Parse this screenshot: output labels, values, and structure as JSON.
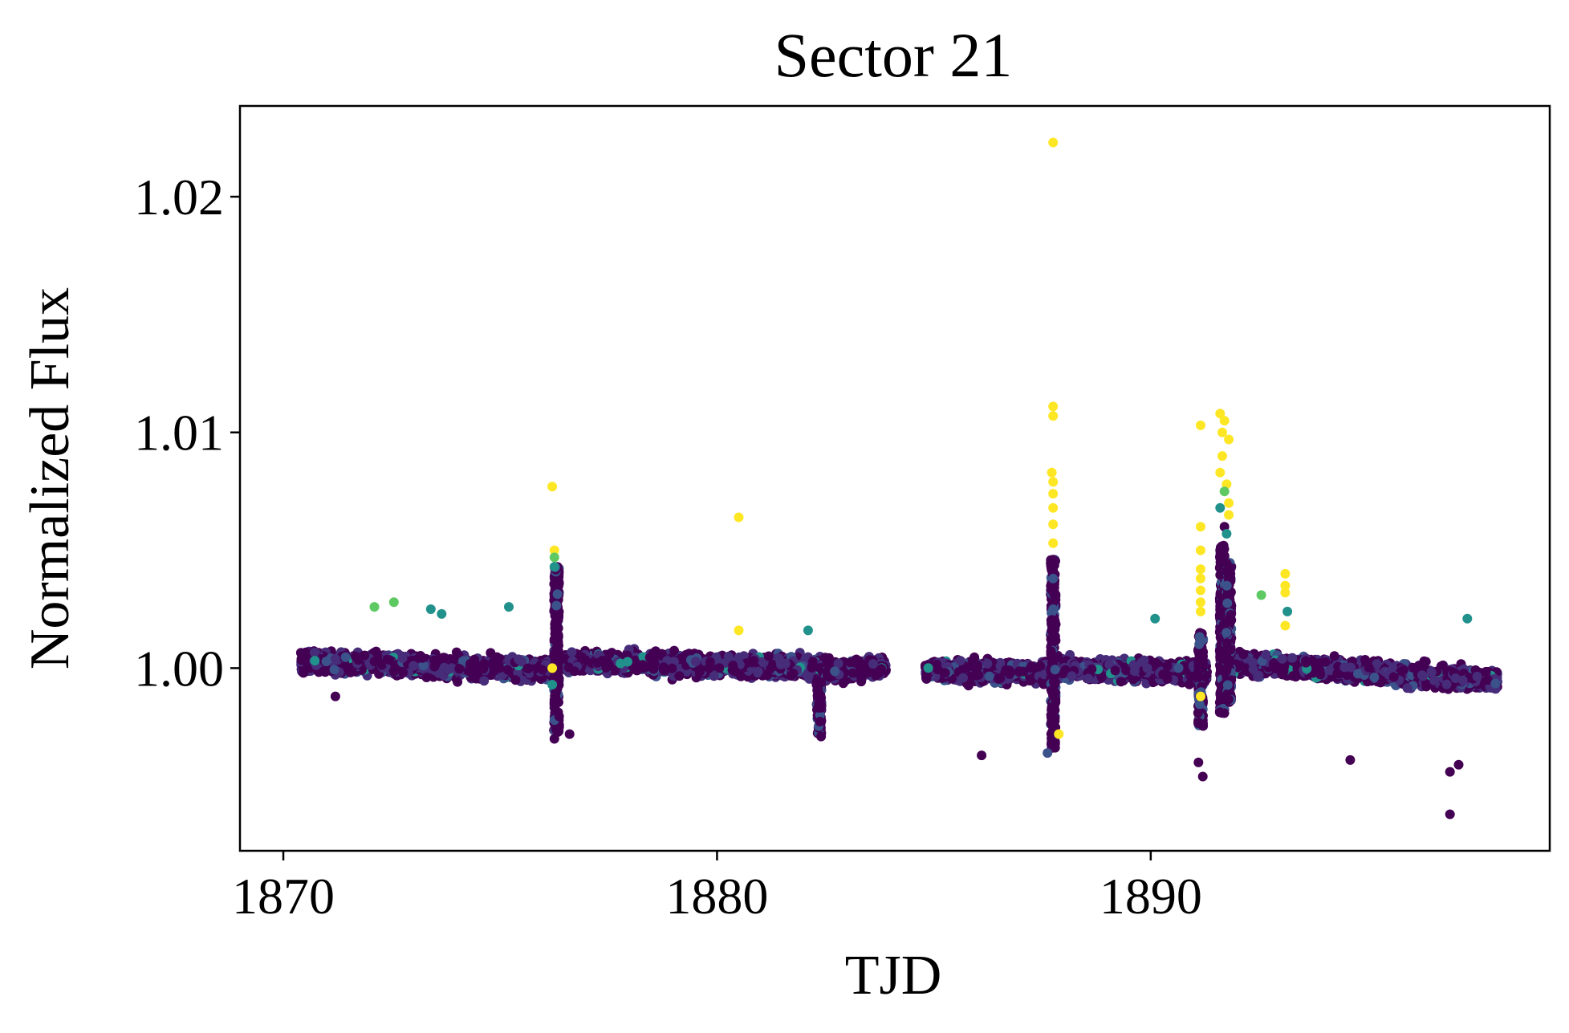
{
  "chart_data": {
    "type": "scatter",
    "title": "Sector 21",
    "xlabel": "TJD",
    "ylabel": "Normalized Flux",
    "xlim": [
      1869.0,
      1899.2
    ],
    "ylim": [
      0.99225,
      1.02385
    ],
    "xticks": [
      1870,
      1880,
      1890
    ],
    "xtick_labels": [
      "1870",
      "1880",
      "1890"
    ],
    "yticks": [
      1.0,
      1.01,
      1.02
    ],
    "ytick_labels": [
      "1.00",
      "1.01",
      "1.02"
    ],
    "grid": false,
    "legend": "none",
    "colormap": [
      "#440154",
      "#3b528b",
      "#21918c",
      "#5ec962",
      "#fde725"
    ],
    "data_gap": [
      1883.9,
      1884.8
    ],
    "baseline_segments": [
      {
        "x": [
          1870.4,
          1876.3
        ],
        "y": [
          1.0003,
          0.9999
        ]
      },
      {
        "x": [
          1876.5,
          1882.5
        ],
        "y": [
          1.0003,
          1.0
        ]
      },
      {
        "x": [
          1882.5,
          1883.9
        ],
        "y": [
          0.9998,
          1.0001
        ]
      },
      {
        "x": [
          1884.8,
          1887.6
        ],
        "y": [
          0.9999,
          0.9998
        ]
      },
      {
        "x": [
          1887.8,
          1891.3
        ],
        "y": [
          1.0,
          0.9998
        ]
      },
      {
        "x": [
          1891.9,
          1898.0
        ],
        "y": [
          1.0002,
          0.9995
        ]
      }
    ],
    "notable_points": [
      {
        "x": 1887.75,
        "y": 1.0223,
        "c": "#fde725"
      },
      {
        "x": 1887.75,
        "y": 1.0111,
        "c": "#fde725"
      },
      {
        "x": 1887.75,
        "y": 1.0107,
        "c": "#fde725"
      },
      {
        "x": 1887.72,
        "y": 1.0083,
        "c": "#fde725"
      },
      {
        "x": 1887.75,
        "y": 1.0079,
        "c": "#fde725"
      },
      {
        "x": 1887.75,
        "y": 1.0074,
        "c": "#fde725"
      },
      {
        "x": 1887.75,
        "y": 1.0068,
        "c": "#fde725"
      },
      {
        "x": 1887.75,
        "y": 1.0061,
        "c": "#fde725"
      },
      {
        "x": 1887.75,
        "y": 1.0053,
        "c": "#fde725"
      },
      {
        "x": 1887.75,
        "y": 1.0046,
        "c": "#440154"
      },
      {
        "x": 1887.75,
        "y": 1.0038,
        "c": "#3b528b"
      },
      {
        "x": 1887.75,
        "y": 1.0025,
        "c": "#3b528b"
      },
      {
        "x": 1887.88,
        "y": 0.9972,
        "c": "#fde725"
      },
      {
        "x": 1887.62,
        "y": 0.9964,
        "c": "#3b528b"
      },
      {
        "x": 1876.2,
        "y": 1.0077,
        "c": "#fde725"
      },
      {
        "x": 1876.25,
        "y": 1.005,
        "c": "#fde725"
      },
      {
        "x": 1876.25,
        "y": 1.0047,
        "c": "#5ec962"
      },
      {
        "x": 1876.25,
        "y": 1.0043,
        "c": "#21918c"
      },
      {
        "x": 1876.2,
        "y": 1.0,
        "c": "#fde725"
      },
      {
        "x": 1876.2,
        "y": 0.9993,
        "c": "#21918c"
      },
      {
        "x": 1876.25,
        "y": 0.997,
        "c": "#440154"
      },
      {
        "x": 1876.6,
        "y": 0.9972,
        "c": "#440154"
      },
      {
        "x": 1880.5,
        "y": 1.0064,
        "c": "#fde725"
      },
      {
        "x": 1880.5,
        "y": 1.0016,
        "c": "#fde725"
      },
      {
        "x": 1891.15,
        "y": 1.0103,
        "c": "#fde725"
      },
      {
        "x": 1891.6,
        "y": 1.0108,
        "c": "#fde725"
      },
      {
        "x": 1891.7,
        "y": 1.0105,
        "c": "#fde725"
      },
      {
        "x": 1891.65,
        "y": 1.01,
        "c": "#fde725"
      },
      {
        "x": 1891.8,
        "y": 1.0097,
        "c": "#fde725"
      },
      {
        "x": 1891.65,
        "y": 1.009,
        "c": "#fde725"
      },
      {
        "x": 1891.6,
        "y": 1.0083,
        "c": "#fde725"
      },
      {
        "x": 1891.75,
        "y": 1.0078,
        "c": "#fde725"
      },
      {
        "x": 1891.7,
        "y": 1.0075,
        "c": "#5ec962"
      },
      {
        "x": 1891.8,
        "y": 1.007,
        "c": "#fde725"
      },
      {
        "x": 1891.6,
        "y": 1.0068,
        "c": "#21918c"
      },
      {
        "x": 1891.8,
        "y": 1.0065,
        "c": "#fde725"
      },
      {
        "x": 1891.15,
        "y": 1.006,
        "c": "#fde725"
      },
      {
        "x": 1891.7,
        "y": 1.006,
        "c": "#440154"
      },
      {
        "x": 1891.75,
        "y": 1.0057,
        "c": "#21918c"
      },
      {
        "x": 1891.15,
        "y": 1.005,
        "c": "#fde725"
      },
      {
        "x": 1891.6,
        "y": 1.005,
        "c": "#440154"
      },
      {
        "x": 1891.15,
        "y": 1.0042,
        "c": "#fde725"
      },
      {
        "x": 1891.15,
        "y": 1.0038,
        "c": "#fde725"
      },
      {
        "x": 1891.15,
        "y": 1.0033,
        "c": "#fde725"
      },
      {
        "x": 1891.15,
        "y": 1.0028,
        "c": "#fde725"
      },
      {
        "x": 1891.15,
        "y": 1.0024,
        "c": "#fde725"
      },
      {
        "x": 1891.15,
        "y": 0.9988,
        "c": "#fde725"
      },
      {
        "x": 1891.1,
        "y": 0.996,
        "c": "#440154"
      },
      {
        "x": 1891.2,
        "y": 0.9954,
        "c": "#440154"
      },
      {
        "x": 1893.1,
        "y": 1.004,
        "c": "#fde725"
      },
      {
        "x": 1893.1,
        "y": 1.0035,
        "c": "#fde725"
      },
      {
        "x": 1893.1,
        "y": 1.0032,
        "c": "#fde725"
      },
      {
        "x": 1893.15,
        "y": 1.0024,
        "c": "#21918c"
      },
      {
        "x": 1893.1,
        "y": 1.0018,
        "c": "#fde725"
      },
      {
        "x": 1892.55,
        "y": 1.0031,
        "c": "#5ec962"
      },
      {
        "x": 1872.1,
        "y": 1.0026,
        "c": "#5ec962"
      },
      {
        "x": 1872.55,
        "y": 1.0028,
        "c": "#5ec962"
      },
      {
        "x": 1873.4,
        "y": 1.0025,
        "c": "#21918c"
      },
      {
        "x": 1873.65,
        "y": 1.0023,
        "c": "#21918c"
      },
      {
        "x": 1875.2,
        "y": 1.0026,
        "c": "#21918c"
      },
      {
        "x": 1882.1,
        "y": 1.0016,
        "c": "#21918c"
      },
      {
        "x": 1890.1,
        "y": 1.0021,
        "c": "#21918c"
      },
      {
        "x": 1897.3,
        "y": 1.0021,
        "c": "#21918c"
      },
      {
        "x": 1896.9,
        "y": 0.9938,
        "c": "#440154"
      },
      {
        "x": 1896.9,
        "y": 0.9956,
        "c": "#440154"
      },
      {
        "x": 1897.1,
        "y": 0.9959,
        "c": "#440154"
      },
      {
        "x": 1894.6,
        "y": 0.9961,
        "c": "#440154"
      },
      {
        "x": 1886.1,
        "y": 0.9963,
        "c": "#440154"
      },
      {
        "x": 1882.4,
        "y": 0.9971,
        "c": "#440154"
      },
      {
        "x": 1871.2,
        "y": 0.9988,
        "c": "#440154"
      }
    ]
  }
}
